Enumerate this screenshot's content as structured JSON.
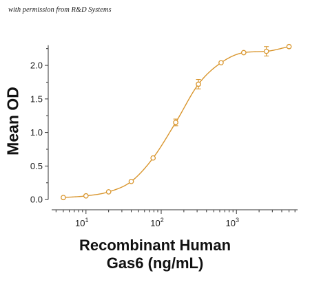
{
  "credit": "with permission from R&D Systems",
  "chart_data": {
    "type": "line",
    "xscale": "log",
    "xlabel_line1": "Recombinant Human",
    "xlabel_line2": "Gas6 (ng/mL)",
    "ylabel": "Mean OD",
    "xlim": [
      3.5,
      6500
    ],
    "ylim": [
      -0.06,
      2.38
    ],
    "yticks": [
      "0.0",
      "0.5",
      "1.0",
      "1.5",
      "2.0"
    ],
    "xticks": [
      {
        "value": 10,
        "base": "10",
        "exp": "1"
      },
      {
        "value": 100,
        "base": "10",
        "exp": "2"
      },
      {
        "value": 1000,
        "base": "10",
        "exp": "3"
      }
    ],
    "color": "#D9962E",
    "grid": false,
    "series": [
      {
        "x": [
          5,
          10,
          20,
          40,
          78,
          156,
          312.5,
          625,
          1250,
          2500,
          5000
        ],
        "y": [
          0.03,
          0.055,
          0.115,
          0.27,
          0.62,
          1.15,
          1.72,
          2.04,
          2.19,
          2.21,
          2.28
        ],
        "err": [
          0.01,
          0.01,
          0.01,
          0.02,
          0.02,
          0.05,
          0.07,
          0.02,
          0.015,
          0.07,
          0.025
        ]
      }
    ]
  }
}
